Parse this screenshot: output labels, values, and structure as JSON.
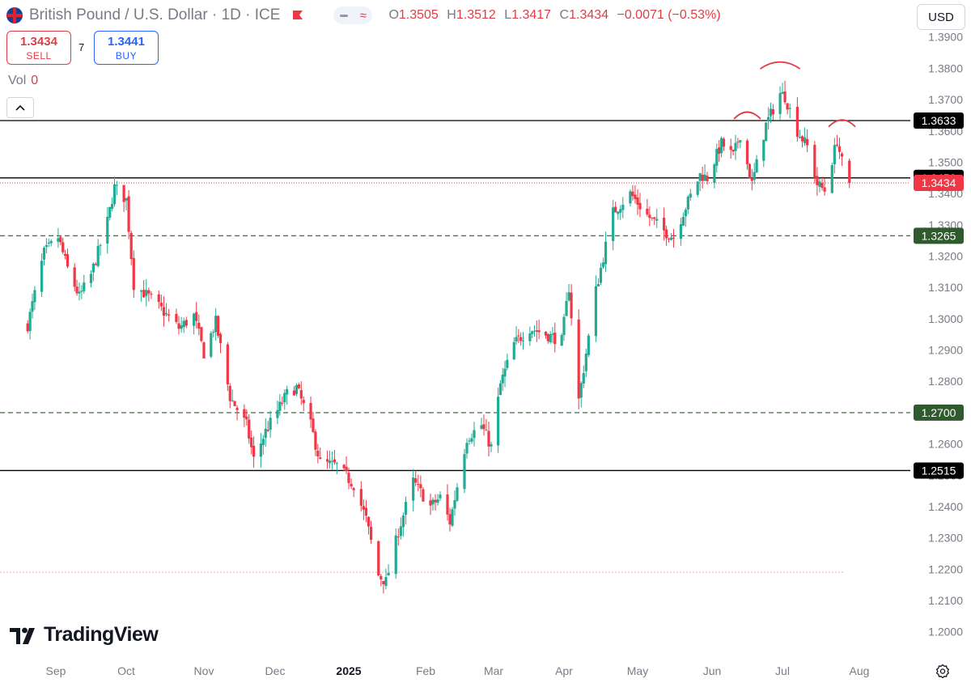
{
  "header": {
    "symbol_title": "British Pound / U.S. Dollar · 1D · ICE",
    "ohlc": {
      "o_label": "O",
      "o": "1.3505",
      "h_label": "H",
      "h": "1.3512",
      "l_label": "L",
      "l": "1.3417",
      "c_label": "C",
      "c": "1.3434",
      "change": "−0.0071 (−0.53%)"
    },
    "currency": "USD",
    "flag_icon": "uk-us-flag-icon",
    "alert_icon": "flag-icon",
    "compare_icons": [
      "minus-icon",
      "approx-icon"
    ]
  },
  "trade": {
    "sell_price": "1.3434",
    "sell_label": "SELL",
    "spread": "7",
    "buy_price": "1.3441",
    "buy_label": "BUY"
  },
  "volume": {
    "label": "Vol",
    "value": "0"
  },
  "brand": {
    "name": "TradingView"
  },
  "colors": {
    "up": "#22ab94",
    "down": "#f23645",
    "accent_red": "#e03d45",
    "accent_blue": "#2962ff",
    "support_green": "#2e5a2e"
  },
  "chart_data": {
    "type": "candlestick",
    "title": "British Pound / U.S. Dollar · 1D · ICE",
    "x_ticks": [
      "Sep",
      "Oct",
      "Nov",
      "Dec",
      "2025",
      "Feb",
      "Mar",
      "Apr",
      "May",
      "Jun",
      "Jul",
      "Aug"
    ],
    "y_ticks": [
      "1.2000",
      "1.2100",
      "1.2200",
      "1.2300",
      "1.2400",
      "1.2500",
      "1.2600",
      "1.2700",
      "1.2800",
      "1.2900",
      "1.3000",
      "1.3100",
      "1.3200",
      "1.3300",
      "1.3400",
      "1.3500",
      "1.3600",
      "1.3700",
      "1.3800",
      "1.3900"
    ],
    "ylim": [
      1.195,
      1.392
    ],
    "grid": false,
    "price_path": [
      [
        "2024-08-20",
        1.298
      ],
      [
        "2024-08-27",
        1.321
      ],
      [
        "2024-09-02",
        1.326
      ],
      [
        "2024-09-06",
        1.316
      ],
      [
        "2024-09-11",
        1.307
      ],
      [
        "2024-09-16",
        1.314
      ],
      [
        "2024-09-23",
        1.331
      ],
      [
        "2024-09-26",
        1.342
      ],
      [
        "2024-10-01",
        1.338
      ],
      [
        "2024-10-04",
        1.311
      ],
      [
        "2024-10-10",
        1.307
      ],
      [
        "2024-10-15",
        1.303
      ],
      [
        "2024-10-22",
        1.297
      ],
      [
        "2024-10-28",
        1.301
      ],
      [
        "2024-11-01",
        1.289
      ],
      [
        "2024-11-06",
        1.299
      ],
      [
        "2024-11-12",
        1.275
      ],
      [
        "2024-11-19",
        1.266
      ],
      [
        "2024-11-22",
        1.255
      ],
      [
        "2024-11-27",
        1.264
      ],
      [
        "2024-12-06",
        1.276
      ],
      [
        "2024-12-10",
        1.278
      ],
      [
        "2024-12-16",
        1.266
      ],
      [
        "2024-12-20",
        1.254
      ],
      [
        "2024-12-27",
        1.253
      ],
      [
        "2025-01-03",
        1.247
      ],
      [
        "2025-01-08",
        1.236
      ],
      [
        "2025-01-13",
        1.218
      ],
      [
        "2025-01-16",
        1.216
      ],
      [
        "2025-01-21",
        1.232
      ],
      [
        "2025-01-27",
        1.248
      ],
      [
        "2025-02-03",
        1.24
      ],
      [
        "2025-02-07",
        1.243
      ],
      [
        "2025-02-11",
        1.235
      ],
      [
        "2025-02-18",
        1.262
      ],
      [
        "2025-02-24",
        1.266
      ],
      [
        "2025-02-28",
        1.259
      ],
      [
        "2025-03-04",
        1.279
      ],
      [
        "2025-03-10",
        1.292
      ],
      [
        "2025-03-17",
        1.297
      ],
      [
        "2025-03-24",
        1.295
      ],
      [
        "2025-03-31",
        1.293
      ],
      [
        "2025-04-03",
        1.31
      ],
      [
        "2025-04-07",
        1.274
      ],
      [
        "2025-04-14",
        1.309
      ],
      [
        "2025-04-21",
        1.334
      ],
      [
        "2025-04-28",
        1.34
      ],
      [
        "2025-05-05",
        1.333
      ],
      [
        "2025-05-12",
        1.328
      ],
      [
        "2025-05-16",
        1.326
      ],
      [
        "2025-05-20",
        1.334
      ],
      [
        "2025-05-27",
        1.346
      ],
      [
        "2025-05-30",
        1.345
      ],
      [
        "2025-06-05",
        1.356
      ],
      [
        "2025-06-10",
        1.352
      ],
      [
        "2025-06-13",
        1.359
      ],
      [
        "2025-06-18",
        1.343
      ],
      [
        "2025-06-24",
        1.362
      ],
      [
        "2025-06-30",
        1.372
      ],
      [
        "2025-07-02",
        1.371
      ],
      [
        "2025-07-07",
        1.36
      ],
      [
        "2025-07-11",
        1.355
      ],
      [
        "2025-07-15",
        1.343
      ],
      [
        "2025-07-18",
        1.341
      ],
      [
        "2025-07-23",
        1.357
      ],
      [
        "2025-07-25",
        1.35
      ],
      [
        "2025-07-28",
        1.3434
      ]
    ],
    "last_ohlc": {
      "open": 1.3505,
      "high": 1.3512,
      "low": 1.3417,
      "close": 1.3434
    },
    "levels": [
      {
        "value": 1.3633,
        "label": "1.3633",
        "style": "solid",
        "tag": "dark"
      },
      {
        "value": 1.345,
        "label": "1.3450",
        "style": "solid",
        "tag": "dark"
      },
      {
        "value": 1.3265,
        "label": "1.3265",
        "style": "dashed",
        "tag": "green"
      },
      {
        "value": 1.27,
        "label": "1.2700",
        "style": "dashed",
        "tag": "green"
      },
      {
        "value": 1.2515,
        "label": "1.2515",
        "style": "solid",
        "tag": "dark"
      }
    ],
    "last_price": {
      "value": 1.3434,
      "label": "1.3434"
    },
    "low_line": 1.219,
    "annotations": [
      {
        "type": "arc",
        "date": "2025-06-16",
        "value": 1.3655
      },
      {
        "type": "arc",
        "date": "2025-06-30",
        "value": 1.3815
      },
      {
        "type": "arc",
        "date": "2025-07-25",
        "value": 1.363
      }
    ]
  }
}
